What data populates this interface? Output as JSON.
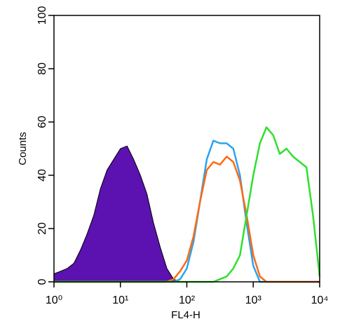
{
  "chart_data": {
    "type": "line",
    "x_label": "FL4-H",
    "y_label": "Counts",
    "xscale": "log",
    "xlim": [
      1,
      10000
    ],
    "ylim": [
      0,
      100
    ],
    "xticks": [
      {
        "value": 1,
        "label": "10⁰"
      },
      {
        "value": 10,
        "label": "10¹"
      },
      {
        "value": 100,
        "label": "10²"
      },
      {
        "value": 1000,
        "label": "10³"
      },
      {
        "value": 10000,
        "label": "10⁴"
      }
    ],
    "yticks": [
      0,
      20,
      40,
      60,
      80,
      100
    ],
    "x": [
      1,
      1.26,
      1.58,
      2,
      2.51,
      3.16,
      3.98,
      5.01,
      6.31,
      7.94,
      10,
      12.6,
      15.8,
      20,
      25.1,
      31.6,
      39.8,
      50.1,
      63.1,
      79.4,
      100,
      126,
      158,
      200,
      251,
      316,
      398,
      501,
      631,
      794,
      1000,
      1260,
      1580,
      2000,
      2510,
      3160,
      3980,
      5010,
      6310,
      7940,
      10000
    ],
    "series": [
      {
        "color": "#5b12b0",
        "filled": true,
        "values": [
          3,
          4,
          5,
          7,
          12,
          18,
          25,
          35,
          42,
          46,
          50,
          51,
          46,
          40,
          33,
          22,
          13,
          5,
          1,
          0,
          0,
          0,
          0,
          0,
          0,
          0,
          0,
          0,
          0,
          0,
          0,
          0,
          0,
          0,
          0,
          0,
          0,
          0,
          0,
          0,
          0
        ]
      },
      {
        "color": "#2ba3ef",
        "filled": false,
        "values": [
          0,
          0,
          0,
          0,
          0,
          0,
          0,
          0,
          0,
          0,
          0,
          0,
          0,
          0,
          0,
          0,
          0,
          0,
          0,
          1,
          5,
          15,
          30,
          46,
          53,
          52,
          52,
          50,
          40,
          22,
          6,
          0,
          0,
          0,
          0,
          0,
          0,
          0,
          0,
          0,
          0
        ]
      },
      {
        "color": "#ff6a13",
        "filled": false,
        "values": [
          0,
          0,
          0,
          0,
          0,
          0,
          0,
          0,
          0,
          0,
          0,
          0,
          0,
          0,
          0,
          0,
          0,
          0,
          1,
          4,
          8,
          17,
          30,
          42,
          45,
          44,
          47,
          45,
          38,
          25,
          10,
          2,
          0,
          0,
          0,
          0,
          0,
          0,
          0,
          0,
          0
        ]
      },
      {
        "color": "#2ee02e",
        "filled": false,
        "values": [
          0,
          0,
          0,
          0,
          0,
          0,
          0,
          0,
          0,
          0,
          0,
          0,
          0,
          0,
          0,
          0,
          0,
          0,
          0,
          0,
          0,
          0,
          0,
          0,
          0,
          1,
          2,
          5,
          10,
          25,
          40,
          52,
          58,
          55,
          48,
          50,
          47,
          45,
          43,
          25,
          2
        ]
      }
    ]
  }
}
